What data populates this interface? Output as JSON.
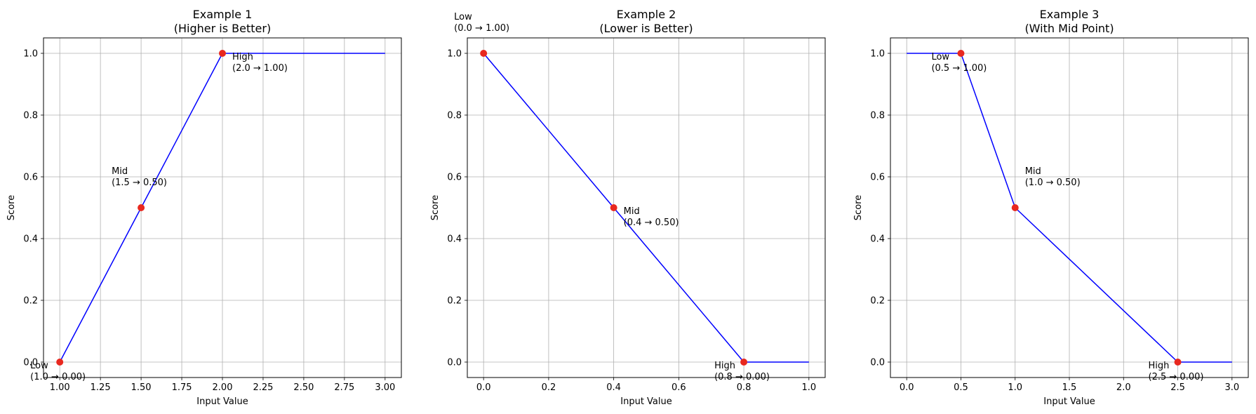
{
  "colors": {
    "line": "#0000ff",
    "marker": "#e8281f",
    "grid": "#b0b0b0"
  },
  "chart_data": [
    {
      "type": "line",
      "title": "Example 1\n(Higher is Better)",
      "xlabel": "Input Value",
      "ylabel": "Score",
      "xlim": [
        0.9,
        3.1
      ],
      "ylim": [
        -0.05,
        1.05
      ],
      "x_ticks": [
        1.0,
        1.25,
        1.5,
        1.75,
        2.0,
        2.25,
        2.5,
        2.75,
        3.0
      ],
      "x_tick_labels": [
        "1.00",
        "1.25",
        "1.50",
        "1.75",
        "2.00",
        "2.25",
        "2.50",
        "2.75",
        "3.00"
      ],
      "y_ticks": [
        0.0,
        0.2,
        0.4,
        0.6,
        0.8,
        1.0
      ],
      "y_tick_labels": [
        "0.0",
        "0.2",
        "0.4",
        "0.6",
        "0.8",
        "1.0"
      ],
      "grid": true,
      "curve": {
        "x": [
          1.0,
          1.5,
          2.0,
          3.0
        ],
        "y": [
          0.0,
          0.5,
          1.0,
          1.0
        ]
      },
      "points": [
        {
          "x": 1.0,
          "y": 0.0,
          "label": "Low",
          "value_text": "(1.0 → 0.00)",
          "label_side": "below-left"
        },
        {
          "x": 1.5,
          "y": 0.5,
          "label": "Mid",
          "value_text": "(1.5 → 0.50)",
          "label_side": "above-left"
        },
        {
          "x": 2.0,
          "y": 1.0,
          "label": "High",
          "value_text": "(2.0 → 1.00)",
          "label_side": "below-right"
        }
      ]
    },
    {
      "type": "line",
      "title": "Example 2\n(Lower is Better)",
      "xlabel": "Input Value",
      "ylabel": "Score",
      "xlim": [
        -0.05,
        1.05
      ],
      "ylim": [
        -0.05,
        1.05
      ],
      "x_ticks": [
        0.0,
        0.2,
        0.4,
        0.6,
        0.8,
        1.0
      ],
      "x_tick_labels": [
        "0.0",
        "0.2",
        "0.4",
        "0.6",
        "0.8",
        "1.0"
      ],
      "y_ticks": [
        0.0,
        0.2,
        0.4,
        0.6,
        0.8,
        1.0
      ],
      "y_tick_labels": [
        "0.0",
        "0.2",
        "0.4",
        "0.6",
        "0.8",
        "1.0"
      ],
      "grid": true,
      "curve": {
        "x": [
          0.0,
          0.4,
          0.8,
          1.0
        ],
        "y": [
          1.0,
          0.5,
          0.0,
          0.0
        ]
      },
      "points": [
        {
          "x": 0.0,
          "y": 1.0,
          "label": "Low",
          "value_text": "(0.0 → 1.00)",
          "label_side": "above-left"
        },
        {
          "x": 0.4,
          "y": 0.5,
          "label": "Mid",
          "value_text": "(0.4 → 0.50)",
          "label_side": "below-right"
        },
        {
          "x": 0.8,
          "y": 0.0,
          "label": "High",
          "value_text": "(0.8 → 0.00)",
          "label_side": "below-left"
        }
      ]
    },
    {
      "type": "line",
      "title": "Example 3\n(With Mid Point)",
      "xlabel": "Input Value",
      "ylabel": "Score",
      "xlim": [
        -0.15,
        3.15
      ],
      "ylim": [
        -0.05,
        1.05
      ],
      "x_ticks": [
        0.0,
        0.5,
        1.0,
        1.5,
        2.0,
        2.5,
        3.0
      ],
      "x_tick_labels": [
        "0.0",
        "0.5",
        "1.0",
        "1.5",
        "2.0",
        "2.5",
        "3.0"
      ],
      "y_ticks": [
        0.0,
        0.2,
        0.4,
        0.6,
        0.8,
        1.0
      ],
      "y_tick_labels": [
        "0.0",
        "0.2",
        "0.4",
        "0.6",
        "0.8",
        "1.0"
      ],
      "grid": true,
      "curve": {
        "x": [
          0.0,
          0.5,
          1.0,
          2.5,
          3.0
        ],
        "y": [
          1.0,
          1.0,
          0.5,
          0.0,
          0.0
        ]
      },
      "points": [
        {
          "x": 0.5,
          "y": 1.0,
          "label": "Low",
          "value_text": "(0.5 → 1.00)",
          "label_side": "below-left"
        },
        {
          "x": 1.0,
          "y": 0.5,
          "label": "Mid",
          "value_text": "(1.0 → 0.50)",
          "label_side": "above-right"
        },
        {
          "x": 2.5,
          "y": 0.0,
          "label": "High",
          "value_text": "(2.5 → 0.00)",
          "label_side": "below-left"
        }
      ]
    }
  ]
}
